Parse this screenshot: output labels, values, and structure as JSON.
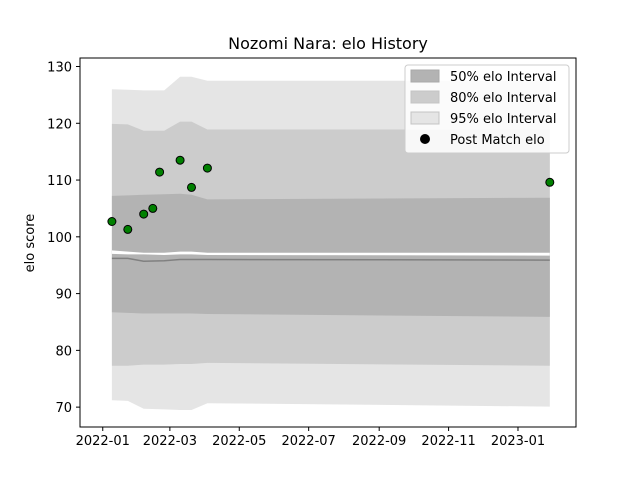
{
  "chart_data": {
    "type": "area",
    "title": "Nozomi Nara: elo History",
    "xlabel": "",
    "ylabel": "elo score",
    "xlim": [
      "2021-12-12",
      "2023-02-21"
    ],
    "ylim": [
      66.5,
      131.5
    ],
    "x_ticks": [
      "2022-01",
      "2022-03",
      "2022-05",
      "2022-07",
      "2022-09",
      "2022-11",
      "2023-01"
    ],
    "y_ticks": [
      70,
      80,
      90,
      100,
      110,
      120,
      130
    ],
    "grid": false,
    "legend": "top-right",
    "legend_entries": [
      "50% elo Interval",
      "80% elo Interval",
      "95% elo Interval",
      "Post Match elo"
    ],
    "colors": {
      "band_50": "#b3b3b3",
      "band_80": "#cccccc",
      "band_95": "#e5e5e5",
      "gap": "#ffffff",
      "mean_line": "#808080",
      "point_fill": "#008000",
      "point_edge": "#000000"
    },
    "bands": {
      "dates": [
        "2022-01-09",
        "2022-01-23",
        "2022-02-06",
        "2022-02-24",
        "2022-03-10",
        "2022-03-20",
        "2022-04-03",
        "2023-01-29"
      ],
      "mean": [
        96.2,
        96.2,
        95.7,
        95.8,
        96.0,
        96.0,
        96.0,
        95.9
      ],
      "upper_50": [
        107.2,
        107.3,
        107.4,
        107.5,
        107.6,
        107.4,
        106.6,
        106.9
      ],
      "lower_50": [
        86.7,
        86.6,
        86.5,
        86.5,
        86.5,
        86.5,
        86.4,
        85.9
      ],
      "upper_80": [
        119.9,
        119.8,
        118.7,
        118.7,
        120.3,
        120.3,
        118.9,
        118.9
      ],
      "lower_80": [
        77.3,
        77.3,
        77.5,
        77.5,
        77.6,
        77.6,
        77.8,
        77.3
      ],
      "upper_95": [
        126.0,
        125.9,
        125.8,
        125.8,
        128.2,
        128.2,
        127.5,
        127.5
      ],
      "lower_95": [
        71.2,
        71.1,
        69.7,
        69.6,
        69.5,
        69.5,
        70.7,
        70.1
      ],
      "gap_upper": [
        97.6,
        97.4,
        97.2,
        97.2,
        97.4,
        97.4,
        97.2,
        97.2
      ],
      "gap_lower": [
        97.0,
        96.9,
        96.9,
        96.8,
        96.9,
        96.9,
        96.8,
        96.7
      ]
    },
    "series": [
      {
        "name": "Post Match elo",
        "x": [
          "2022-01-09",
          "2022-01-23",
          "2022-02-06",
          "2022-02-14",
          "2022-02-20",
          "2022-03-10",
          "2022-03-20",
          "2022-04-03",
          "2023-01-29"
        ],
        "y": [
          102.7,
          101.3,
          104.0,
          105.0,
          111.4,
          113.5,
          108.7,
          112.1,
          109.6
        ]
      }
    ]
  }
}
